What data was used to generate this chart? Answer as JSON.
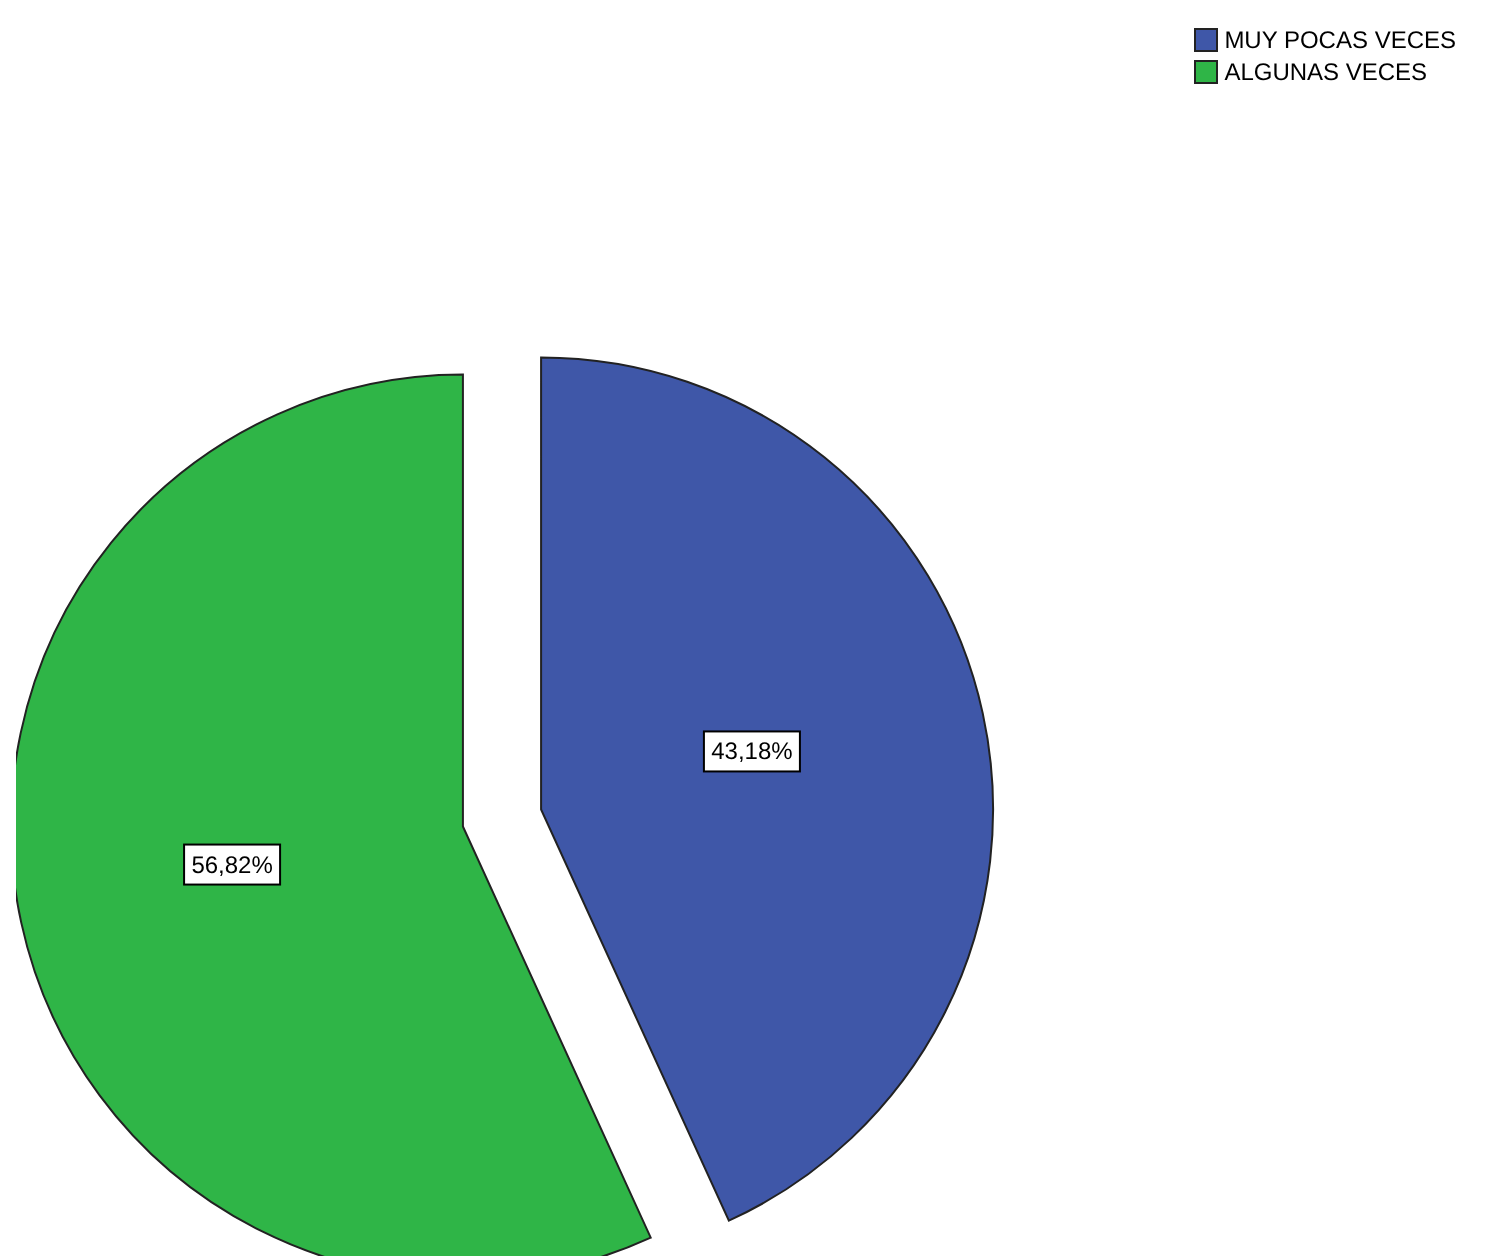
{
  "chart_data": {
    "type": "pie",
    "categories": [
      "MUY POCAS VECES",
      "ALGUNAS VECES"
    ],
    "values": [
      43.18,
      56.82
    ],
    "colors": [
      "#3f57a8",
      "#2fb547"
    ],
    "value_labels": [
      "43,18%",
      "56,82%"
    ],
    "legend": "top right"
  }
}
